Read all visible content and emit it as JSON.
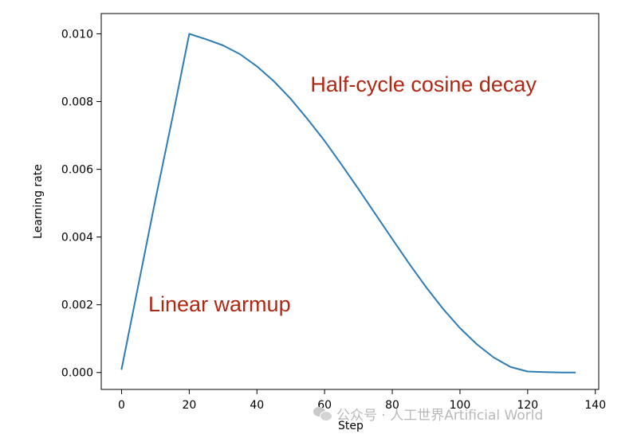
{
  "chart_data": {
    "type": "line",
    "title": "",
    "xlabel": "Step",
    "ylabel": "Learning rate",
    "xlim": [
      -6,
      141
    ],
    "ylim": [
      -0.0005,
      0.0106
    ],
    "xticks": [
      0,
      20,
      40,
      60,
      80,
      100,
      120,
      140
    ],
    "yticks": [
      0.0,
      0.002,
      0.004,
      0.006,
      0.008,
      0.01
    ],
    "xtick_labels": [
      "0",
      "20",
      "40",
      "60",
      "80",
      "100",
      "120",
      "140"
    ],
    "ytick_labels": [
      "0.000",
      "0.002",
      "0.004",
      "0.006",
      "0.008",
      "0.010"
    ],
    "grid": false,
    "line_color": "#2e7cb6",
    "x": [
      0,
      5,
      10,
      15,
      20,
      25,
      30,
      35,
      40,
      45,
      50,
      55,
      60,
      65,
      70,
      75,
      80,
      85,
      90,
      95,
      100,
      105,
      110,
      115,
      120,
      125,
      130,
      134
    ],
    "series": [
      {
        "values": [
          0.0001,
          0.0026,
          0.0051,
          0.0075,
          0.01,
          0.00984,
          0.00966,
          0.0094,
          0.00904,
          0.0086,
          0.00808,
          0.00748,
          0.00684,
          0.00614,
          0.00542,
          0.00468,
          0.00394,
          0.00321,
          0.00252,
          0.00188,
          0.00131,
          0.00083,
          0.00044,
          0.00016,
          3e-05,
          1e-05,
          0.0,
          0.0
        ]
      }
    ],
    "annotations": [
      {
        "text": "Half-cycle cosine decay",
        "x": 55.8,
        "y": 0.0083,
        "color": "#b02712"
      },
      {
        "text": "Linear warmup",
        "x": 7.9,
        "y": 0.0018,
        "color": "#b02712"
      }
    ]
  },
  "watermark": {
    "text": "公众号 · 人工世界Artificial World",
    "icon": "wechat-icon"
  }
}
